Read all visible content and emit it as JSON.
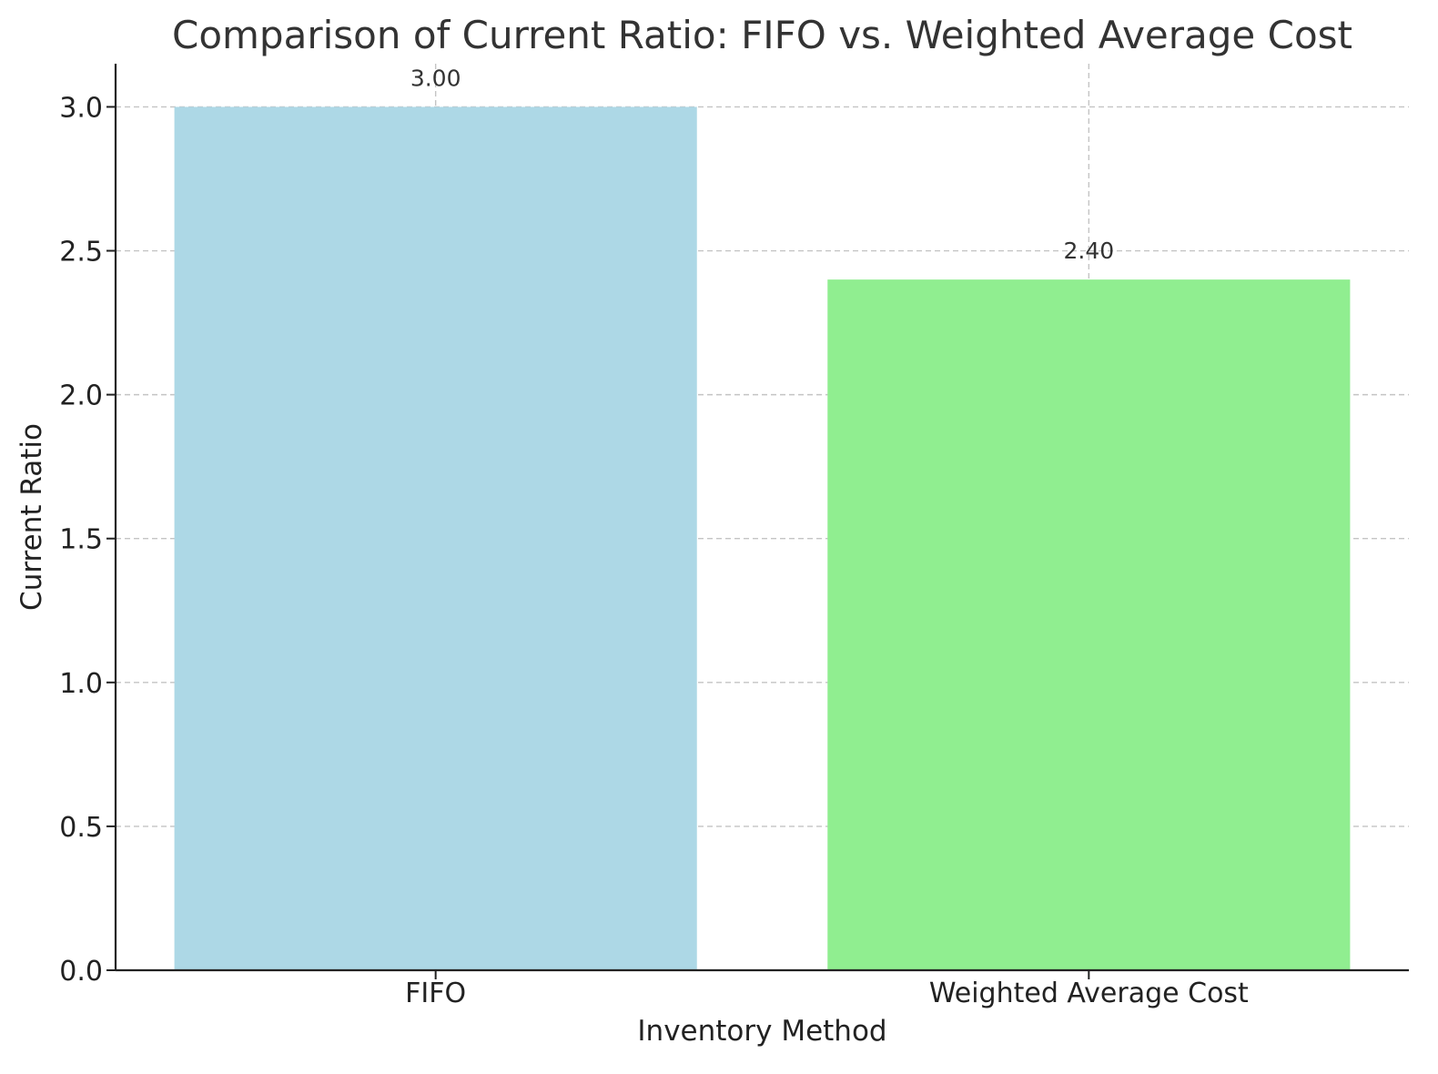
{
  "chart_data": {
    "type": "bar",
    "title": "Comparison of Current Ratio: FIFO vs. Weighted Average Cost",
    "xlabel": "Inventory Method",
    "ylabel": "Current Ratio",
    "categories": [
      "FIFO",
      "Weighted Average Cost"
    ],
    "values": [
      3.0,
      2.4
    ],
    "value_labels": [
      "3.00",
      "2.40"
    ],
    "bar_colors": [
      "#add8e6",
      "#90ee90"
    ],
    "ylim": [
      0,
      3.15
    ],
    "yticks": [
      0.0,
      0.5,
      1.0,
      1.5,
      2.0,
      2.5,
      3.0
    ],
    "ytick_labels": [
      "0.0",
      "0.5",
      "1.0",
      "1.5",
      "2.0",
      "2.5",
      "3.0"
    ],
    "grid": true,
    "grid_style": "dashed"
  }
}
